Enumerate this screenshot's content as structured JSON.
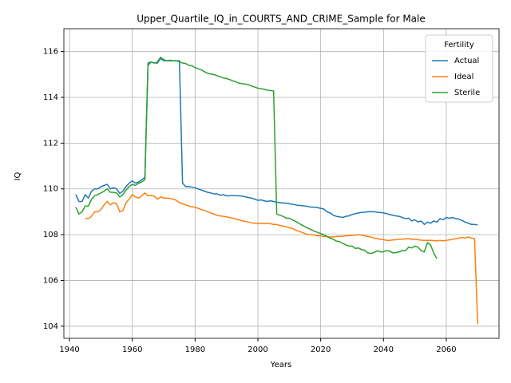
{
  "chart_data": {
    "type": "line",
    "title": "Upper_Quartile_IQ_in_COURTS_AND_CRIME_Sample for Male",
    "xlabel": "Years",
    "ylabel": "IQ",
    "legend_title": "Fertility",
    "legend_loc": "upper right",
    "grid": true,
    "xlim": [
      1938.2,
      2076.8
    ],
    "ylim": [
      103.47,
      117.0
    ],
    "xticks": [
      1940,
      1960,
      1980,
      2000,
      2020,
      2040,
      2060
    ],
    "yticks": [
      104,
      106,
      108,
      110,
      112,
      114,
      116
    ],
    "x": [
      1942,
      1943,
      1944,
      1945,
      1946,
      1947,
      1948,
      1949,
      1950,
      1951,
      1952,
      1953,
      1954,
      1955,
      1956,
      1957,
      1958,
      1959,
      1960,
      1961,
      1962,
      1963,
      1964,
      1965,
      1966,
      1967,
      1968,
      1969,
      1970,
      1971,
      1972,
      1973,
      1974,
      1975,
      1976,
      1977,
      1978,
      1979,
      1980,
      1981,
      1982,
      1983,
      1984,
      1985,
      1986,
      1987,
      1988,
      1989,
      1990,
      1991,
      1992,
      1993,
      1994,
      1995,
      1996,
      1997,
      1998,
      1999,
      2000,
      2001,
      2002,
      2003,
      2004,
      2005,
      2006,
      2007,
      2008,
      2009,
      2010,
      2011,
      2012,
      2013,
      2014,
      2015,
      2016,
      2017,
      2018,
      2019,
      2020,
      2021,
      2022,
      2023,
      2024,
      2025,
      2026,
      2027,
      2028,
      2029,
      2030,
      2031,
      2032,
      2033,
      2034,
      2035,
      2036,
      2037,
      2038,
      2039,
      2040,
      2041,
      2042,
      2043,
      2044,
      2045,
      2046,
      2047,
      2048,
      2049,
      2050,
      2051,
      2052,
      2053,
      2054,
      2055,
      2056,
      2057,
      2058,
      2059,
      2060,
      2061,
      2062,
      2063,
      2064,
      2065,
      2066,
      2067,
      2068,
      2069,
      2070
    ],
    "series": [
      {
        "name": "Actual",
        "color": "#1f77b4",
        "values": [
          109.75,
          109.45,
          109.45,
          109.75,
          109.6,
          109.9,
          110.0,
          110.0,
          110.1,
          110.15,
          110.2,
          110.0,
          110.05,
          110.0,
          109.8,
          109.9,
          110.1,
          110.25,
          110.35,
          110.25,
          110.3,
          110.4,
          110.5,
          115.5,
          115.55,
          115.5,
          115.5,
          115.7,
          115.6,
          115.6,
          115.6,
          115.6,
          115.6,
          115.6,
          110.25,
          110.1,
          110.1,
          110.08,
          110.05,
          110.0,
          109.95,
          109.9,
          109.85,
          109.82,
          109.78,
          109.78,
          109.72,
          109.75,
          109.7,
          109.7,
          109.72,
          109.7,
          109.7,
          109.68,
          109.65,
          109.62,
          109.6,
          109.55,
          109.5,
          109.52,
          109.48,
          109.45,
          109.48,
          109.45,
          109.42,
          109.4,
          109.38,
          109.38,
          109.35,
          109.33,
          109.3,
          109.28,
          109.27,
          109.25,
          109.23,
          109.2,
          109.2,
          109.18,
          109.15,
          109.12,
          109.0,
          108.95,
          108.85,
          108.8,
          108.78,
          108.75,
          108.8,
          108.82,
          108.88,
          108.92,
          108.95,
          108.97,
          108.98,
          109.0,
          109.0,
          109.0,
          108.98,
          108.97,
          108.95,
          108.92,
          108.88,
          108.85,
          108.82,
          108.8,
          108.75,
          108.7,
          108.72,
          108.6,
          108.65,
          108.55,
          108.6,
          108.45,
          108.55,
          108.5,
          108.6,
          108.55,
          108.7,
          108.65,
          108.75,
          108.72,
          108.75,
          108.7,
          108.68,
          108.62,
          108.55,
          108.5,
          108.45,
          108.45,
          108.42
        ]
      },
      {
        "name": "Ideal",
        "color": "#ff7f0e",
        "values": [
          null,
          null,
          null,
          108.72,
          108.7,
          108.8,
          109.0,
          109.0,
          109.1,
          109.3,
          109.45,
          109.3,
          109.4,
          109.35,
          109.0,
          109.05,
          109.4,
          109.55,
          109.75,
          109.65,
          109.6,
          109.7,
          109.82,
          109.7,
          109.72,
          109.68,
          109.55,
          109.65,
          109.6,
          109.6,
          109.58,
          109.55,
          109.5,
          109.4,
          109.35,
          109.3,
          109.25,
          109.22,
          109.2,
          109.15,
          109.1,
          109.05,
          109.0,
          108.95,
          108.9,
          108.85,
          108.82,
          108.8,
          108.78,
          108.75,
          108.72,
          108.68,
          108.65,
          108.6,
          108.58,
          108.55,
          108.52,
          108.5,
          108.5,
          108.5,
          108.48,
          108.5,
          108.48,
          108.45,
          108.45,
          108.4,
          108.38,
          108.35,
          108.3,
          108.28,
          108.2,
          108.15,
          108.1,
          108.05,
          108.0,
          108.0,
          107.98,
          107.95,
          107.95,
          107.92,
          107.92,
          107.9,
          107.9,
          107.92,
          107.93,
          107.93,
          107.95,
          107.95,
          107.97,
          107.98,
          108.0,
          107.98,
          107.95,
          107.92,
          107.9,
          107.85,
          107.82,
          107.8,
          107.78,
          107.75,
          107.75,
          107.77,
          107.78,
          107.8,
          107.8,
          107.82,
          107.82,
          107.8,
          107.8,
          107.78,
          107.76,
          107.75,
          107.75,
          107.75,
          107.74,
          107.73,
          107.75,
          107.73,
          107.75,
          107.77,
          107.8,
          107.82,
          107.85,
          107.88,
          107.85,
          107.9,
          107.85,
          107.82,
          104.1
        ]
      },
      {
        "name": "Sterile",
        "color": "#2ca02c",
        "values": [
          109.2,
          108.9,
          109.0,
          109.25,
          109.25,
          109.55,
          109.7,
          109.75,
          109.82,
          109.9,
          110.0,
          109.85,
          109.85,
          109.82,
          109.65,
          109.75,
          109.95,
          110.1,
          110.2,
          110.15,
          110.25,
          110.3,
          110.4,
          115.4,
          115.55,
          115.5,
          115.55,
          115.75,
          115.65,
          115.6,
          115.62,
          115.6,
          115.6,
          115.55,
          115.5,
          115.48,
          115.4,
          115.38,
          115.3,
          115.25,
          115.2,
          115.12,
          115.05,
          115.02,
          115.0,
          114.95,
          114.9,
          114.85,
          114.82,
          114.78,
          114.72,
          114.68,
          114.62,
          114.6,
          114.58,
          114.55,
          114.5,
          114.45,
          114.4,
          114.38,
          114.35,
          114.32,
          114.3,
          114.28,
          108.9,
          108.85,
          108.8,
          108.72,
          108.72,
          108.65,
          108.58,
          108.5,
          108.42,
          108.35,
          108.28,
          108.22,
          108.15,
          108.1,
          108.05,
          108.0,
          107.92,
          107.85,
          107.8,
          107.72,
          107.7,
          107.62,
          107.55,
          107.5,
          107.5,
          107.4,
          107.42,
          107.35,
          107.32,
          107.2,
          107.18,
          107.22,
          107.3,
          107.25,
          107.25,
          107.3,
          107.28,
          107.2,
          107.22,
          107.25,
          107.3,
          107.3,
          107.45,
          107.42,
          107.5,
          107.45,
          107.3,
          107.25,
          107.65,
          107.55,
          107.2,
          106.95,
          null,
          null,
          null,
          null,
          null,
          null,
          null,
          null,
          null,
          null,
          null,
          null,
          null
        ]
      }
    ]
  }
}
